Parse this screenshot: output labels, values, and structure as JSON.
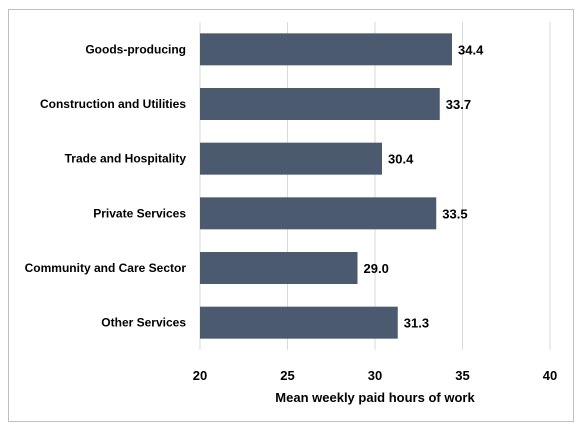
{
  "chart_data": {
    "type": "bar",
    "orientation": "horizontal",
    "title": "",
    "xlabel": "Mean weekly paid hours of work",
    "ylabel": "",
    "xlim": [
      20,
      40
    ],
    "xticks": [
      "20",
      "25",
      "30",
      "35",
      "40"
    ],
    "xtick_values": [
      20,
      25,
      30,
      35,
      40
    ],
    "grid": "vertical",
    "legend": "none",
    "categories": [
      "Goods-producing",
      "Construction and Utilities",
      "Trade and Hospitality",
      "Private Services",
      "Community and Care Sector",
      "Other Services"
    ],
    "values": [
      34.4,
      33.7,
      30.4,
      33.5,
      29.0,
      31.3
    ],
    "value_labels": [
      "34.4",
      "33.7",
      "30.4",
      "33.5",
      "29.0",
      "31.3"
    ],
    "bar_color": "#4b5a6e",
    "grid_color": "#d9d9d9",
    "border_color": "#bfbfbf"
  }
}
